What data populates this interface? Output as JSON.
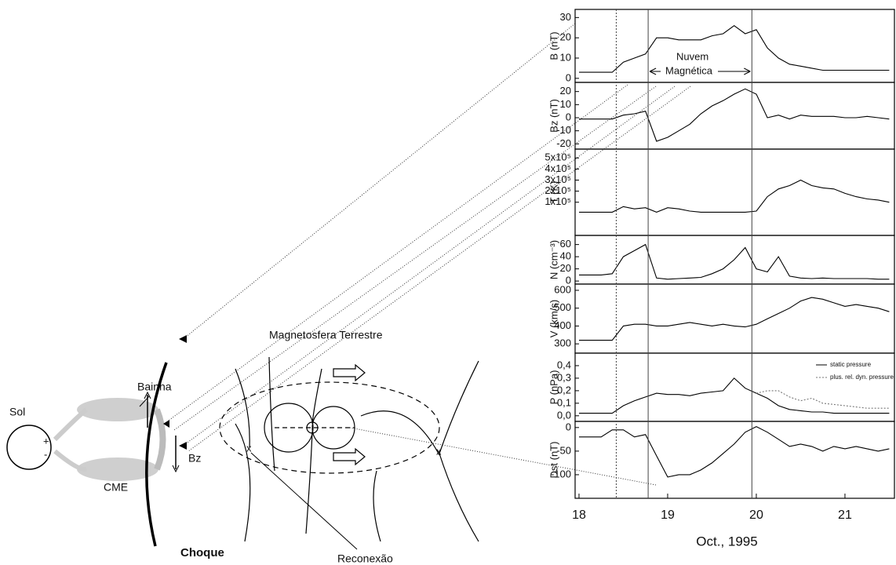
{
  "diagram": {
    "sol": "Sol",
    "plus_sign": "+",
    "minus_sign": "-",
    "cme": "CME",
    "bainha": "Bainha",
    "bz": "Bz",
    "choque": "Choque",
    "magnetosfera": "Magnetosfera Terrestre",
    "reconexao": "Reconexão",
    "x_points": [
      "x",
      "x"
    ]
  },
  "markers": [
    {
      "x": 18.42,
      "style": "dotted"
    },
    {
      "x": 18.78,
      "style": "solid"
    },
    {
      "x": 19.95,
      "style": "solid"
    }
  ],
  "chart_data": [
    {
      "type": "line",
      "ylabel": "B (nT)",
      "annotations": [
        "Nuvem",
        "Magnética"
      ],
      "x": [
        18,
        18.125,
        18.25,
        18.375,
        18.5,
        18.625,
        18.75,
        18.875,
        19,
        19.125,
        19.25,
        19.375,
        19.5,
        19.625,
        19.75,
        19.875,
        20,
        20.125,
        20.25,
        20.375,
        20.5,
        20.625,
        20.75,
        20.875,
        21,
        21.125,
        21.25,
        21.375,
        21.5
      ],
      "xlim": [
        17.956,
        21.558
      ],
      "ylim": [
        -2,
        34
      ],
      "yticks": [
        0,
        10,
        20,
        30
      ],
      "series": [
        {
          "name": "B",
          "color": "#000000",
          "values": [
            3,
            3,
            3,
            3,
            8,
            10,
            12,
            20,
            20,
            19,
            19,
            19,
            21,
            22,
            26,
            22,
            24,
            15,
            10,
            7,
            6,
            5,
            4,
            4,
            4,
            4,
            4,
            4,
            4
          ]
        }
      ]
    },
    {
      "type": "line",
      "ylabel": "Bz (nT)",
      "x": [
        18,
        18.125,
        18.25,
        18.375,
        18.5,
        18.625,
        18.75,
        18.875,
        19,
        19.125,
        19.25,
        19.375,
        19.5,
        19.625,
        19.75,
        19.875,
        20,
        20.125,
        20.25,
        20.375,
        20.5,
        20.625,
        20.75,
        20.875,
        21,
        21.125,
        21.25,
        21.375,
        21.5
      ],
      "xlim": [
        17.956,
        21.558
      ],
      "ylim": [
        -24,
        27
      ],
      "yticks": [
        -20,
        -10,
        0,
        10,
        20
      ],
      "series": [
        {
          "name": "Bz",
          "color": "#000000",
          "values": [
            -1,
            -1,
            -1,
            -1,
            2,
            3,
            5,
            -18,
            -15,
            -10,
            -5,
            3,
            9,
            13,
            18,
            22,
            18,
            0,
            2,
            -1,
            2,
            1,
            1,
            1,
            0,
            0,
            1,
            0,
            -1
          ]
        }
      ]
    },
    {
      "type": "line",
      "ylabel": "T (K)",
      "x": [
        18,
        18.125,
        18.25,
        18.375,
        18.5,
        18.625,
        18.75,
        18.875,
        19,
        19.125,
        19.25,
        19.375,
        19.5,
        19.625,
        19.75,
        19.875,
        20,
        20.125,
        20.25,
        20.375,
        20.5,
        20.625,
        20.75,
        20.875,
        21,
        21.125,
        21.25,
        21.375,
        21.5
      ],
      "xlim": [
        17.956,
        21.558
      ],
      "ylim": [
        -200000,
        580000
      ],
      "yticks": [
        {
          "value": 100000,
          "label": "1x10⁵"
        },
        {
          "value": 200000,
          "label": "2x10⁵"
        },
        {
          "value": 300000,
          "label": "3x10⁵"
        },
        {
          "value": 400000,
          "label": "4x10⁵"
        },
        {
          "value": 500000,
          "label": "5x10⁵"
        }
      ],
      "series": [
        {
          "name": "T",
          "color": "#000000",
          "values": [
            10000,
            10000,
            10000,
            10000,
            60000,
            40000,
            50000,
            10000,
            50000,
            40000,
            20000,
            10000,
            10000,
            10000,
            10000,
            10000,
            20000,
            150000,
            220000,
            250000,
            300000,
            250000,
            230000,
            220000,
            180000,
            150000,
            130000,
            120000,
            100000
          ]
        }
      ]
    },
    {
      "type": "line",
      "ylabel": "N (cm⁻³)",
      "x": [
        18,
        18.125,
        18.25,
        18.375,
        18.5,
        18.625,
        18.75,
        18.875,
        19,
        19.125,
        19.25,
        19.375,
        19.5,
        19.625,
        19.75,
        19.875,
        20,
        20.125,
        20.25,
        20.375,
        20.5,
        20.625,
        20.75,
        20.875,
        21,
        21.125,
        21.25,
        21.375,
        21.5
      ],
      "xlim": [
        17.956,
        21.558
      ],
      "ylim": [
        -5,
        75
      ],
      "yticks": [
        0,
        20,
        40,
        60
      ],
      "series": [
        {
          "name": "N",
          "color": "#000000",
          "values": [
            10,
            10,
            10,
            12,
            40,
            50,
            60,
            5,
            3,
            4,
            5,
            6,
            12,
            20,
            35,
            55,
            20,
            15,
            40,
            8,
            5,
            4,
            5,
            4,
            4,
            4,
            4,
            3,
            3
          ]
        }
      ]
    },
    {
      "type": "line",
      "ylabel": "V (km/s)",
      "x": [
        18,
        18.125,
        18.25,
        18.375,
        18.5,
        18.625,
        18.75,
        18.875,
        19,
        19.125,
        19.25,
        19.375,
        19.5,
        19.625,
        19.75,
        19.875,
        20,
        20.125,
        20.25,
        20.375,
        20.5,
        20.625,
        20.75,
        20.875,
        21,
        21.125,
        21.25,
        21.375,
        21.5
      ],
      "xlim": [
        17.956,
        21.558
      ],
      "ylim": [
        248,
        635
      ],
      "yticks": [
        300,
        400,
        500,
        600
      ],
      "series": [
        {
          "name": "V",
          "color": "#000000",
          "values": [
            320,
            320,
            320,
            320,
            400,
            410,
            410,
            400,
            400,
            410,
            420,
            410,
            400,
            410,
            400,
            395,
            410,
            440,
            470,
            500,
            540,
            560,
            550,
            530,
            510,
            520,
            510,
            500,
            480
          ]
        }
      ]
    },
    {
      "type": "line",
      "ylabel": "P (nPa)",
      "legend": "upper right",
      "x": [
        18,
        18.125,
        18.25,
        18.375,
        18.5,
        18.625,
        18.75,
        18.875,
        19,
        19.125,
        19.25,
        19.375,
        19.5,
        19.625,
        19.75,
        19.875,
        20,
        20.125,
        20.25,
        20.375,
        20.5,
        20.625,
        20.75,
        20.875,
        21,
        21.125,
        21.25,
        21.375,
        21.5
      ],
      "xlim": [
        17.956,
        21.558
      ],
      "ylim": [
        -0.045,
        0.5
      ],
      "yticks": [
        {
          "value": 0,
          "label": "0,0"
        },
        {
          "value": 0.1,
          "label": "0,1"
        },
        {
          "value": 0.2,
          "label": "0,2"
        },
        {
          "value": 0.3,
          "label": "0,3"
        },
        {
          "value": 0.4,
          "label": "0,4"
        }
      ],
      "series": [
        {
          "name": "static pressure",
          "color": "#000000",
          "dash": "solid",
          "values": [
            0.02,
            0.02,
            0.02,
            0.02,
            0.08,
            0.12,
            0.15,
            0.18,
            0.17,
            0.17,
            0.16,
            0.18,
            0.19,
            0.2,
            0.3,
            0.22,
            0.18,
            0.14,
            0.08,
            0.05,
            0.04,
            0.03,
            0.03,
            0.02,
            0.02,
            0.02,
            0.02,
            0.02,
            0.02
          ]
        },
        {
          "name": "plus. rel. dyn. pressure",
          "color": "#777777",
          "dash": "dotted",
          "values": [
            null,
            null,
            null,
            null,
            null,
            null,
            null,
            null,
            null,
            null,
            null,
            null,
            null,
            null,
            null,
            null,
            0.18,
            0.2,
            0.2,
            0.15,
            0.12,
            0.14,
            0.1,
            0.09,
            0.08,
            0.07,
            0.06,
            0.06,
            0.06
          ]
        }
      ]
    },
    {
      "type": "line",
      "ylabel": "Dst (nT)",
      "xlabel": "Oct., 1995",
      "x": [
        18,
        18.125,
        18.25,
        18.375,
        18.5,
        18.625,
        18.75,
        18.875,
        19,
        19.125,
        19.25,
        19.375,
        19.5,
        19.625,
        19.75,
        19.875,
        20,
        20.125,
        20.25,
        20.375,
        20.5,
        20.625,
        20.75,
        20.875,
        21,
        21.125,
        21.25,
        21.375,
        21.5
      ],
      "xlim": [
        17.956,
        21.558
      ],
      "xticks": [
        18,
        19,
        20,
        21
      ],
      "ylim": [
        -150,
        13
      ],
      "yticks": [
        -100,
        -50,
        0
      ],
      "series": [
        {
          "name": "Dst",
          "color": "#000000",
          "values": [
            -20,
            -20,
            -20,
            -5,
            -5,
            -20,
            -15,
            -60,
            -105,
            -100,
            -100,
            -90,
            -75,
            -55,
            -35,
            -10,
            2,
            -10,
            -25,
            -40,
            -35,
            -40,
            -50,
            -40,
            -45,
            -40,
            -45,
            -50,
            -45
          ]
        }
      ]
    }
  ]
}
